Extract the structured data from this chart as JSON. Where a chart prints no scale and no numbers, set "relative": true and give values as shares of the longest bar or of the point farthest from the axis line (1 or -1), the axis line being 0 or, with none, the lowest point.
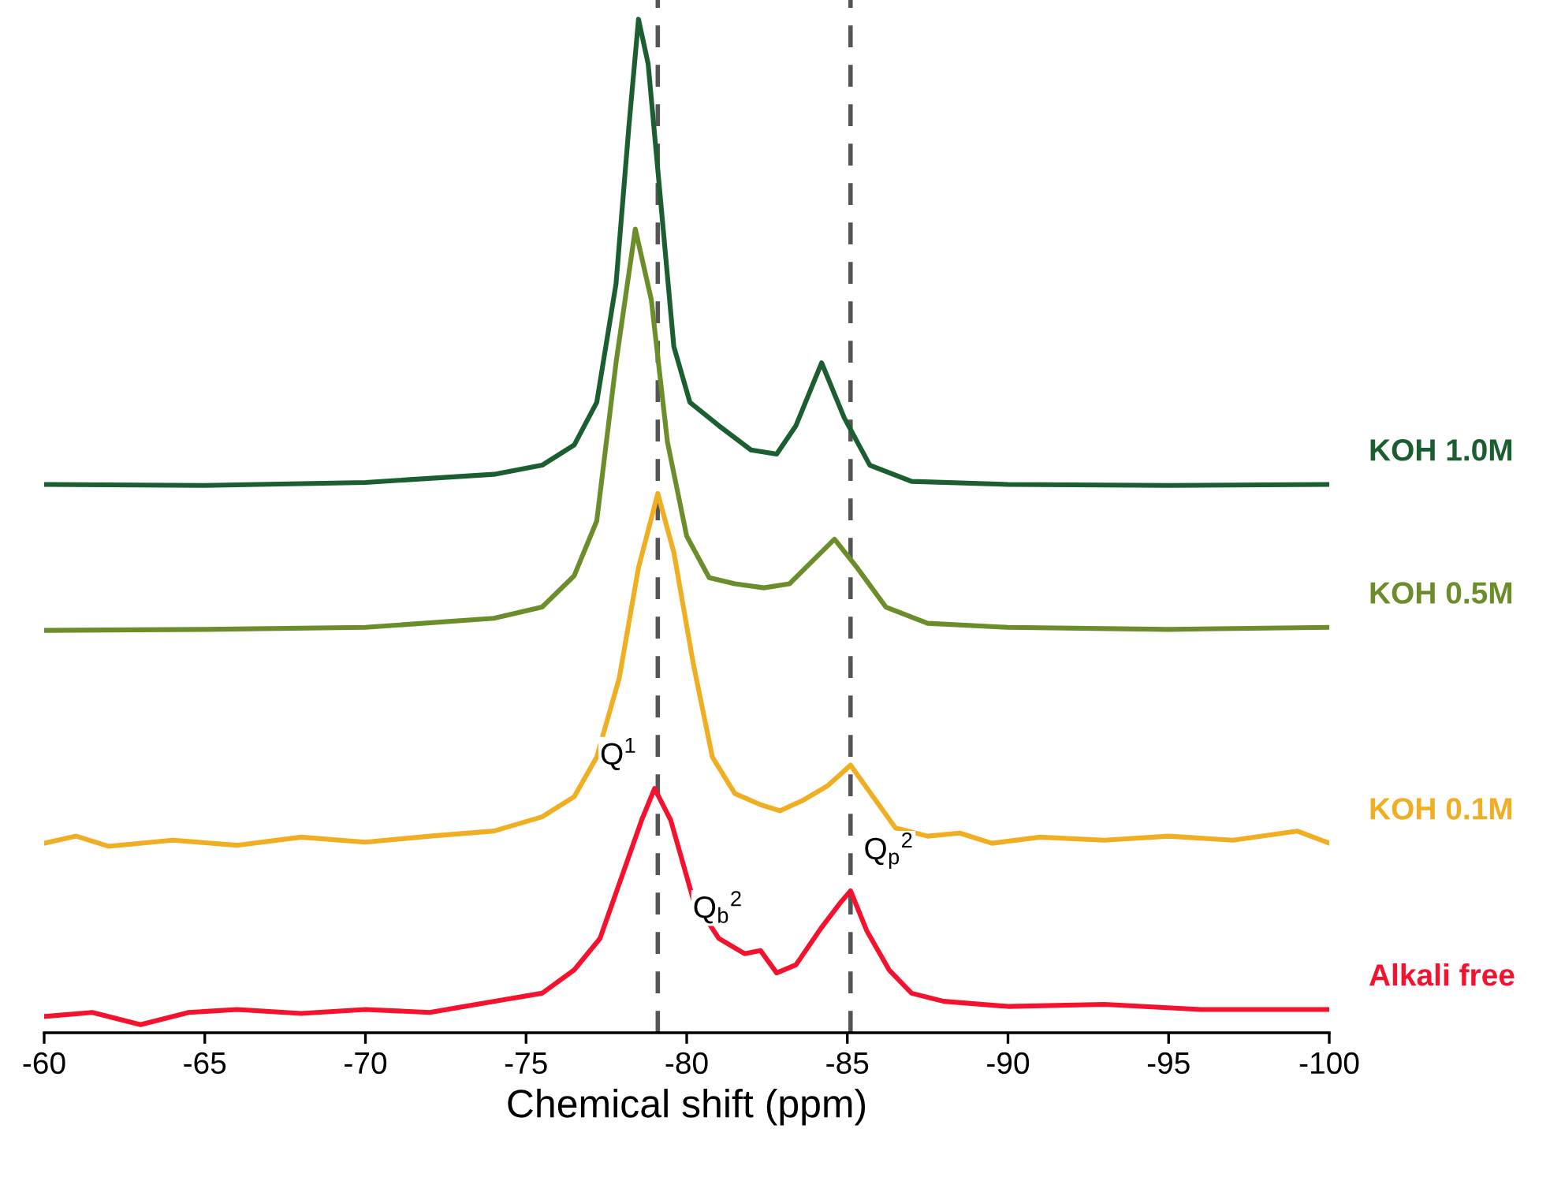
{
  "chart_data": {
    "type": "line",
    "relative": true,
    "xlabel": "Chemical shift (ppm)",
    "xlim": [
      -60,
      -100
    ],
    "xticks": [
      -60,
      -65,
      -70,
      -75,
      -80,
      -85,
      -90,
      -95,
      -100
    ],
    "legend": false,
    "grid": false,
    "marker": "none",
    "line_style": "solid",
    "tick_labels": "x",
    "series": [
      {
        "name": "KOH 1.0M",
        "color": "#1b5e2f",
        "x": [
          -60,
          -65,
          -70,
          -74,
          -75.5,
          -76.5,
          -77.2,
          -77.8,
          -78.2,
          -78.5,
          -78.8,
          -79.2,
          -79.6,
          -80.1,
          -81,
          -82,
          -82.8,
          -83.4,
          -84.2,
          -84.9,
          -85.7,
          -87,
          -90,
          -95,
          -100
        ],
        "values": [
          0.541,
          0.54,
          0.543,
          0.551,
          0.56,
          0.58,
          0.622,
          0.739,
          0.894,
          1.0,
          0.956,
          0.817,
          0.677,
          0.622,
          0.599,
          0.575,
          0.571,
          0.599,
          0.661,
          0.607,
          0.56,
          0.544,
          0.541,
          0.54,
          0.541
        ]
      },
      {
        "name": "KOH 0.5M",
        "color": "#6b8e2a",
        "x": [
          -60,
          -65,
          -70,
          -74,
          -75.5,
          -76.5,
          -77.2,
          -77.8,
          -78.4,
          -78.9,
          -79.4,
          -80,
          -80.7,
          -81.5,
          -82.4,
          -83.2,
          -84.6,
          -85.3,
          -86.2,
          -87.5,
          -90,
          -95,
          -100
        ],
        "values": [
          0.397,
          0.398,
          0.4,
          0.409,
          0.42,
          0.451,
          0.505,
          0.661,
          0.793,
          0.723,
          0.583,
          0.49,
          0.449,
          0.443,
          0.439,
          0.443,
          0.487,
          0.459,
          0.42,
          0.404,
          0.4,
          0.398,
          0.4
        ]
      },
      {
        "name": "KOH 0.1M",
        "color": "#f0ae22",
        "x": [
          -60,
          -61,
          -62,
          -64,
          -66,
          -68,
          -70,
          -72,
          -74,
          -75.5,
          -76.5,
          -77.2,
          -77.9,
          -78.5,
          -79.1,
          -79.6,
          -80.2,
          -80.8,
          -81.5,
          -82.3,
          -82.9,
          -83.6,
          -84.4,
          -85.1,
          -85.8,
          -86.5,
          -87.5,
          -88.5,
          -89.5,
          -91,
          -93,
          -95,
          -97,
          -99,
          -100
        ],
        "values": [
          0.187,
          0.194,
          0.184,
          0.19,
          0.185,
          0.193,
          0.188,
          0.194,
          0.199,
          0.213,
          0.233,
          0.272,
          0.35,
          0.459,
          0.532,
          0.474,
          0.365,
          0.272,
          0.236,
          0.225,
          0.219,
          0.229,
          0.244,
          0.264,
          0.233,
          0.202,
          0.194,
          0.197,
          0.187,
          0.193,
          0.19,
          0.194,
          0.19,
          0.199,
          0.187
        ]
      },
      {
        "name": "Alkali free",
        "color": "#f5122e",
        "x": [
          -60,
          -61.5,
          -63,
          -64.5,
          -66,
          -68,
          -70,
          -72,
          -74,
          -75.5,
          -76.5,
          -77.3,
          -78,
          -78.6,
          -79,
          -79.5,
          -80.2,
          -81,
          -81.8,
          -82.3,
          -82.8,
          -83.4,
          -84.2,
          -84.8,
          -85.1,
          -85.6,
          -86.3,
          -87,
          -88,
          -90,
          -93,
          -96,
          -100
        ],
        "values": [
          0.016,
          0.02,
          0.008,
          0.02,
          0.023,
          0.019,
          0.023,
          0.02,
          0.031,
          0.039,
          0.062,
          0.093,
          0.156,
          0.21,
          0.241,
          0.21,
          0.132,
          0.093,
          0.078,
          0.081,
          0.059,
          0.067,
          0.104,
          0.129,
          0.14,
          0.101,
          0.062,
          0.039,
          0.031,
          0.026,
          0.028,
          0.023,
          0.023
        ]
      }
    ],
    "ref_lines": [
      {
        "axis": "x",
        "value": -79.1,
        "color": "#555555",
        "line_style": "dashed"
      },
      {
        "axis": "x",
        "value": -85.1,
        "color": "#555555",
        "line_style": "dashed"
      }
    ],
    "annotations": [
      {
        "text": "Q$^{1}$",
        "x": -79,
        "y": 0.241
      },
      {
        "text": "Q$_{b}$$^{2}$",
        "x": -82.3,
        "y": 0.081
      },
      {
        "text": "Q$_{p}$$^{2}$",
        "x": -85.1,
        "y": 0.14
      }
    ]
  }
}
